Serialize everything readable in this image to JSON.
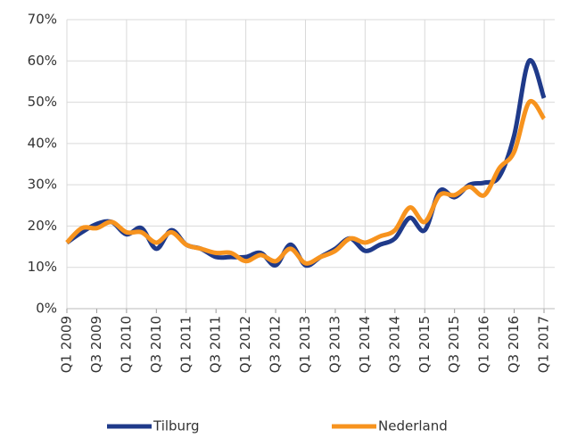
{
  "chart_data": {
    "type": "line",
    "categories": [
      "Q1 2009",
      null,
      "Q3 2009",
      null,
      "Q1 2010",
      null,
      "Q3 2010",
      null,
      "Q1 2011",
      null,
      "Q3 2011",
      null,
      "Q1 2012",
      null,
      "Q3 2012",
      null,
      "Q1 2013",
      null,
      "Q3 2013",
      null,
      "Q1 2014",
      null,
      "Q3 2014",
      null,
      "Q1 2015",
      null,
      "Q3 2015",
      null,
      "Q1 2016",
      null,
      "Q3 2016",
      null,
      "Q1 2017"
    ],
    "series": [
      {
        "name": "Tilburg",
        "color": "#1f3a8a",
        "values": [
          16,
          18.5,
          20.5,
          21,
          18,
          19.5,
          14.5,
          19,
          15.5,
          14.5,
          12.5,
          12.5,
          12.5,
          13.5,
          10.5,
          15.5,
          10.5,
          12.5,
          14.5,
          17,
          14,
          15.5,
          17,
          22,
          19,
          28.5,
          27,
          30,
          30.5,
          32,
          42,
          60,
          51
        ]
      },
      {
        "name": "Nederland",
        "color": "#f7931e",
        "values": [
          16,
          19.5,
          19.5,
          21,
          18.5,
          18.5,
          16,
          18.5,
          15.5,
          14.5,
          13.5,
          13.5,
          11.5,
          13,
          11.5,
          14.5,
          11,
          12.5,
          14,
          17,
          16,
          17.5,
          19,
          24.5,
          21,
          27.5,
          27.5,
          29.5,
          27.5,
          34,
          38,
          50,
          46
        ]
      }
    ],
    "ylim": [
      0,
      70
    ],
    "yticks": [
      {
        "value": 0,
        "label": "0%"
      },
      {
        "value": 10,
        "label": "10%"
      },
      {
        "value": 20,
        "label": "20%"
      },
      {
        "value": 30,
        "label": "30%"
      },
      {
        "value": 40,
        "label": "40%"
      },
      {
        "value": 50,
        "label": "50%"
      },
      {
        "value": 60,
        "label": "60%"
      },
      {
        "value": 70,
        "label": "70%"
      }
    ],
    "grid": true,
    "legend": "bottom"
  }
}
